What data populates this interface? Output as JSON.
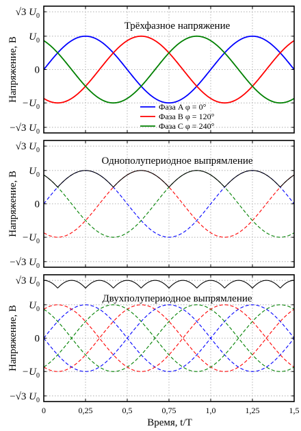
{
  "chart_data": [
    {
      "type": "line",
      "title": "Трёхфазное напряжение",
      "xlabel": "",
      "ylabel": "Напряжение, В",
      "xlim": [
        0,
        1.5
      ],
      "ylim": [
        -1.9,
        1.9
      ],
      "grid": true,
      "legend_position": "bottom-center",
      "y_ticks": [
        {
          "value": 1.7320508,
          "label": "U",
          "sub": "0",
          "prefix": "√3 "
        },
        {
          "value": 1,
          "label": "U",
          "sub": "0",
          "prefix": ""
        },
        {
          "value": 0,
          "label": "0",
          "sub": "",
          "prefix": ""
        },
        {
          "value": -1,
          "label": "−U",
          "sub": "0",
          "prefix": ""
        },
        {
          "value": -1.7320508,
          "label": "U",
          "sub": "0",
          "prefix": "−√3 "
        }
      ],
      "series": [
        {
          "name": "Фаза A φ = 0°",
          "function": "sin",
          "phase_deg": 0,
          "color": "#0000ff",
          "dashed": false
        },
        {
          "name": "Фаза B φ = 120°",
          "function": "sin",
          "phase_deg": 120,
          "color": "#ff0000",
          "dashed": false
        },
        {
          "name": "Фаза C φ = 240°",
          "function": "sin",
          "phase_deg": 240,
          "color": "#008000",
          "dashed": false
        }
      ]
    },
    {
      "type": "line",
      "title": "Однополупериодное выпрямление",
      "xlabel": "",
      "ylabel": "Напряжение, В",
      "xlim": [
        0,
        1.5
      ],
      "ylim": [
        -1.9,
        1.9
      ],
      "grid": true,
      "y_ticks": [
        {
          "value": 1.7320508,
          "label": "U",
          "sub": "0",
          "prefix": "√3 "
        },
        {
          "value": 1,
          "label": "U",
          "sub": "0",
          "prefix": ""
        },
        {
          "value": 0,
          "label": "0",
          "sub": "",
          "prefix": ""
        },
        {
          "value": -1,
          "label": "−U",
          "sub": "0",
          "prefix": ""
        },
        {
          "value": -1.7320508,
          "label": "U",
          "sub": "0",
          "prefix": "−√3 "
        }
      ],
      "series": [
        {
          "function": "sin",
          "phase_deg": 0,
          "color": "#0000ff",
          "dashed": true
        },
        {
          "function": "sin",
          "phase_deg": 120,
          "color": "#ff0000",
          "dashed": true
        },
        {
          "function": "sin",
          "phase_deg": 240,
          "color": "#008000",
          "dashed": true
        },
        {
          "function": "max_phase",
          "color": "#000000",
          "dashed": false
        }
      ]
    },
    {
      "type": "line",
      "title": "Двухполупериодное выпрямление",
      "xlabel": "Время, t/T",
      "ylabel": "Напряжение, В",
      "xlim": [
        0,
        1.5
      ],
      "ylim": [
        -1.9,
        1.9
      ],
      "grid": true,
      "y_ticks": [
        {
          "value": 1.7320508,
          "label": "U",
          "sub": "0",
          "prefix": "√3 "
        },
        {
          "value": 1,
          "label": "U",
          "sub": "0",
          "prefix": ""
        },
        {
          "value": 0,
          "label": "0",
          "sub": "",
          "prefix": ""
        },
        {
          "value": -1,
          "label": "−U",
          "sub": "0",
          "prefix": ""
        },
        {
          "value": -1.7320508,
          "label": "U",
          "sub": "0",
          "prefix": "−√3 "
        }
      ],
      "x_ticks": [
        {
          "value": 0,
          "label": "0"
        },
        {
          "value": 0.25,
          "label": "0,25"
        },
        {
          "value": 0.5,
          "label": "0,5"
        },
        {
          "value": 0.75,
          "label": "0,75"
        },
        {
          "value": 1.0,
          "label": "1,0"
        },
        {
          "value": 1.25,
          "label": "1,25"
        },
        {
          "value": 1.5,
          "label": "1,5"
        }
      ],
      "series": [
        {
          "function": "sin",
          "phase_deg": 0,
          "color": "#0000ff",
          "dashed": true
        },
        {
          "function": "sin",
          "phase_deg": 120,
          "color": "#ff0000",
          "dashed": true
        },
        {
          "function": "sin",
          "phase_deg": 240,
          "color": "#008000",
          "dashed": true
        },
        {
          "function": "neg_sin",
          "phase_deg": 0,
          "color": "#0000ff",
          "dashed": true
        },
        {
          "function": "neg_sin",
          "phase_deg": 120,
          "color": "#ff0000",
          "dashed": true
        },
        {
          "function": "neg_sin",
          "phase_deg": 240,
          "color": "#008000",
          "dashed": true
        },
        {
          "function": "line_to_line_envelope",
          "color": "#000000",
          "dashed": false
        }
      ]
    }
  ]
}
